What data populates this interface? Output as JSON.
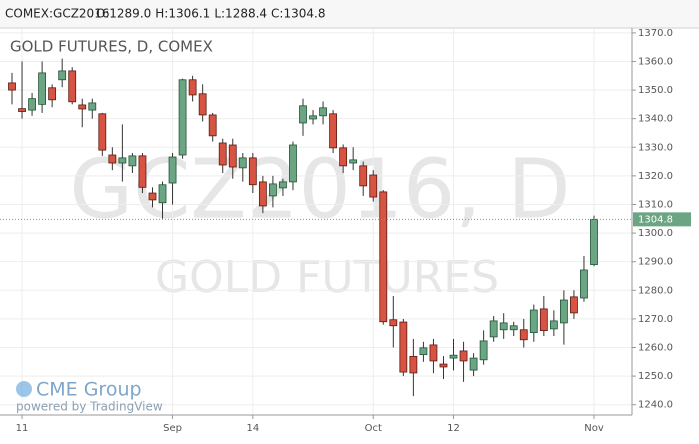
{
  "header": {
    "symbol": "COMEX:GCZ2016",
    "fields": [
      "O:1289.0",
      "H:1306.1",
      "L:1288.4",
      "C:1304.8"
    ]
  },
  "chart_data": {
    "type": "candlestick",
    "title": "GOLD FUTURES, D, COMEX",
    "watermark": "GCZ2016, D",
    "watermark_sub": "GOLD FUTURES",
    "logo": "CME Group",
    "credit": "powered by TradingView",
    "up_color": "#6ba583",
    "down_color": "#d75442",
    "categories": [
      null,
      "11",
      null,
      null,
      null,
      null,
      null,
      null,
      null,
      null,
      null,
      null,
      null,
      null,
      null,
      null,
      "Sep",
      null,
      null,
      null,
      null,
      null,
      null,
      null,
      "14",
      null,
      null,
      null,
      null,
      null,
      null,
      null,
      null,
      null,
      null,
      null,
      "Oct",
      null,
      null,
      null,
      null,
      null,
      null,
      null,
      "12",
      null,
      null,
      null,
      null,
      null,
      null,
      null,
      null,
      null,
      null,
      null,
      null,
      null,
      "Nov"
    ],
    "open": [
      1352.5,
      1343.5,
      1343,
      1345,
      1350.8,
      1353.6,
      1356.7,
      1344.8,
      1343,
      1341.7,
      1327.3,
      1324.5,
      1323.5,
      1327,
      1314,
      1310.6,
      1317.5,
      1327.3,
      1353.6,
      1348.7,
      1341.3,
      1331.5,
      1330.8,
      1322.8,
      1326.3,
      1317.9,
      1313,
      1315.8,
      1317.9,
      1338.5,
      1339.9,
      1341,
      1341.7,
      1329.8,
      1324.5,
      1323.5,
      1320.3,
      1314.4,
      1269.7,
      1268.9,
      1256.9,
      1257.5,
      1260.9,
      1254.2,
      1256.3,
      1258.8,
      1252.1,
      1255.7,
      1263.7,
      1266.2,
      1266.2,
      1266.2,
      1265.2,
      1273.5,
      1266.5,
      1268.6,
      1277.7,
      1277.3,
      1289.0
    ],
    "high": [
      1356,
      1360,
      1349,
      1360,
      1352,
      1361,
      1358,
      1347,
      1347,
      1342,
      1330,
      1338,
      1328,
      1328,
      1316,
      1318,
      1328,
      1354,
      1355,
      1352,
      1342,
      1333,
      1333,
      1328,
      1328,
      1320,
      1320,
      1319,
      1332,
      1347,
      1343,
      1346,
      1343,
      1331,
      1330,
      1325,
      1322,
      1315,
      1278,
      1270,
      1263,
      1262,
      1263,
      1257,
      1263,
      1262,
      1258,
      1266,
      1271,
      1272,
      1269,
      1270,
      1275,
      1278,
      1273,
      1280,
      1280,
      1292,
      1306.1
    ],
    "low": [
      1345,
      1340,
      1341,
      1342,
      1344,
      1351,
      1345,
      1337,
      1340,
      1327,
      1322,
      1318,
      1321,
      1314,
      1309,
      1305,
      1310,
      1326,
      1346,
      1339,
      1332,
      1321,
      1319,
      1318,
      1314,
      1307,
      1309,
      1313,
      1315,
      1334,
      1338,
      1338,
      1328,
      1321,
      1322,
      1313,
      1311,
      1268,
      1260,
      1250,
      1243,
      1255,
      1251,
      1249,
      1252,
      1248,
      1250,
      1254,
      1262,
      1263,
      1264,
      1260,
      1262,
      1264,
      1264,
      1261,
      1270,
      1276,
      1288.4
    ],
    "close": [
      1350,
      1342.5,
      1347,
      1356,
      1346.6,
      1356.7,
      1345.9,
      1343.4,
      1345.5,
      1329,
      1324.5,
      1326.3,
      1327,
      1316,
      1311.6,
      1316.9,
      1326.6,
      1353.6,
      1348.3,
      1341.3,
      1334,
      1323.8,
      1323.1,
      1326.3,
      1316.9,
      1309.5,
      1317.2,
      1317.9,
      1330.8,
      1344.5,
      1341,
      1343.8,
      1329.8,
      1323.5,
      1325.6,
      1316.5,
      1312.6,
      1269,
      1267.6,
      1251.4,
      1251.1,
      1259.9,
      1255.3,
      1253.2,
      1257.3,
      1255.3,
      1256.3,
      1262.3,
      1269.3,
      1268.6,
      1267.6,
      1262.7,
      1273.1,
      1265.9,
      1269.3,
      1276.6,
      1272.1,
      1287.1,
      1304.8
    ],
    "ylim": [
      1236.4,
      1371.7
    ],
    "yticks": [
      {
        "value": 1240,
        "label": "1240.0"
      },
      {
        "value": 1250,
        "label": "1250.0"
      },
      {
        "value": 1260,
        "label": "1260.0"
      },
      {
        "value": 1270,
        "label": "1270.0"
      },
      {
        "value": 1280,
        "label": "1280.0"
      },
      {
        "value": 1290,
        "label": "1290.0"
      },
      {
        "value": 1300,
        "label": "1300.0"
      },
      {
        "value": 1310,
        "label": "1310.0"
      },
      {
        "value": 1320,
        "label": "1320.0"
      },
      {
        "value": 1330,
        "label": "1330.0"
      },
      {
        "value": 1340,
        "label": "1340.0"
      },
      {
        "value": 1350,
        "label": "1350.0"
      },
      {
        "value": 1360,
        "label": "1360.0"
      },
      {
        "value": 1370,
        "label": "1370.0"
      }
    ],
    "grid": true
  }
}
